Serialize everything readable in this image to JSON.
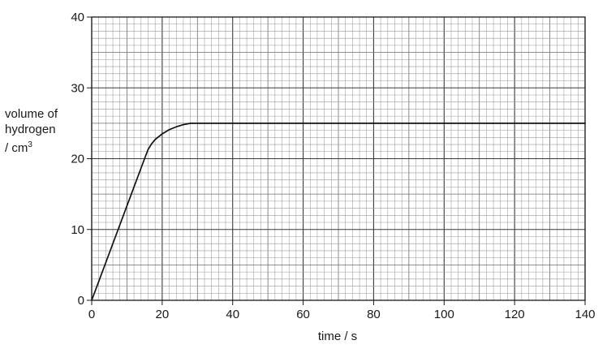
{
  "chart_data": {
    "type": "line",
    "xlabel": "time / s",
    "ylabel_lines": [
      "volume of",
      "hydrogen",
      "/ cm"
    ],
    "ylabel_superscript": "3",
    "xlim": [
      0,
      140
    ],
    "ylim": [
      0,
      40
    ],
    "x_ticks": [
      "0",
      "20",
      "40",
      "60",
      "80",
      "100",
      "120",
      "140"
    ],
    "y_ticks": [
      "0",
      "10",
      "20",
      "30",
      "40"
    ],
    "grid": true,
    "series": [
      {
        "x": [
          0,
          15,
          16,
          17,
          18,
          20,
          22,
          24,
          26,
          28,
          30,
          140
        ],
        "values": [
          0,
          20,
          21.3,
          22.1,
          22.7,
          23.5,
          24.1,
          24.5,
          24.8,
          25,
          25,
          25
        ]
      }
    ]
  }
}
